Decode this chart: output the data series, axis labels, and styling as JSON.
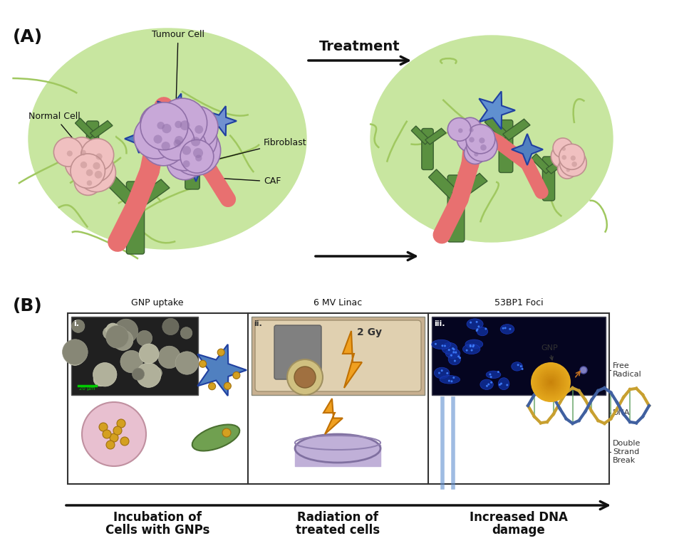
{
  "title_A": "(A)",
  "title_B": "(B)",
  "treatment_label": "Treatment",
  "arrow_label": "",
  "section_A_labels": {
    "normal_cell": "Normal Cell",
    "tumour_cell": "Tumour Cell",
    "fibroblast": "Fibroblast",
    "caf": "CAF"
  },
  "section_B_labels": {
    "gnp_uptake": "GNP uptake",
    "linac": "6 MV Linac",
    "foci": "53BP1 Foci",
    "step1_line1": "Incubation of",
    "step1_line2": "Cells with GNPs",
    "step2_line1": "Radiation of",
    "step2_line2": "treated cells",
    "step3_line1": "Increased DNA",
    "step3_line2": "damage",
    "gy_label": "2 Gy",
    "gnp_label": "GNP",
    "free_radical": "Free\nRadical",
    "dna_label": "DNA",
    "dsb_label": "Double\nStrand\nBreak"
  },
  "colors": {
    "background": "#ffffff",
    "panel_bg": "#f0f8e8",
    "green_ellipse": "#c8e6a0",
    "green_structure": "#6aaa50",
    "red_structure": "#f08080",
    "pink_structure": "#e8a0b0",
    "blue_structure": "#5080c0",
    "purple_cells": "#c8a0d0",
    "pink_cells": "#f0c8c8",
    "box_border": "#333333",
    "text_dark": "#111111",
    "arrow_color": "#111111",
    "gold": "#d4a020",
    "lightning_orange": "#f0a000",
    "dna_gold": "#c8a030",
    "dna_blue": "#4060a0",
    "dna_green": "#408050"
  },
  "figure_width": 9.6,
  "figure_height": 7.77
}
